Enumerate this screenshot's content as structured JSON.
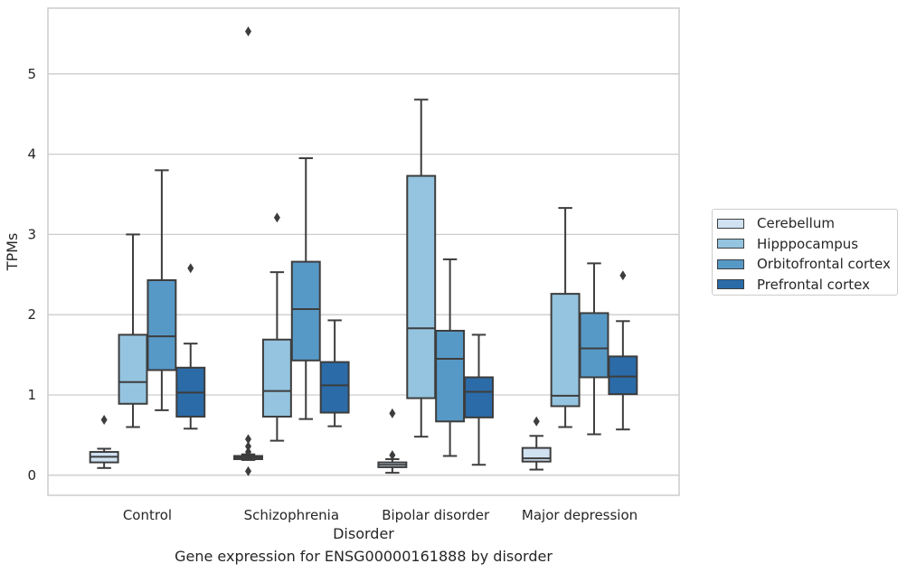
{
  "caption": "Gene expression for ENSG00000161888 by disorder",
  "chart_data": {
    "type": "box",
    "title": "",
    "xlabel": "Disorder",
    "ylabel": "TPMs",
    "ylim": [
      -0.25,
      5.82
    ],
    "yticks": [
      0,
      1,
      2,
      3,
      4,
      5
    ],
    "grid": true,
    "legend_position": "right",
    "categories": [
      "Control",
      "Schizophrenia",
      "Bipolar disorder",
      "Major depression"
    ],
    "series": [
      {
        "name": "Cerebellum",
        "color": "#d0e1f2",
        "boxes": [
          {
            "whislo": 0.09,
            "q1": 0.16,
            "med": 0.23,
            "q3": 0.29,
            "whishi": 0.33,
            "fliers": [
              0.69
            ]
          },
          {
            "whislo": 0.19,
            "q1": 0.2,
            "med": 0.22,
            "q3": 0.24,
            "whishi": 0.26,
            "fliers": [
              0.05,
              0.29,
              0.36,
              0.45,
              5.53
            ]
          },
          {
            "whislo": 0.03,
            "q1": 0.1,
            "med": 0.13,
            "q3": 0.16,
            "whishi": 0.2,
            "fliers": [
              0.25,
              0.77
            ]
          },
          {
            "whislo": 0.07,
            "q1": 0.17,
            "med": 0.21,
            "q3": 0.34,
            "whishi": 0.49,
            "fliers": [
              0.67
            ]
          }
        ]
      },
      {
        "name": "Hipppocampus",
        "color": "#94c4df",
        "boxes": [
          {
            "whislo": 0.6,
            "q1": 0.89,
            "med": 1.16,
            "q3": 1.75,
            "whishi": 3.0,
            "fliers": []
          },
          {
            "whislo": 0.43,
            "q1": 0.73,
            "med": 1.05,
            "q3": 1.69,
            "whishi": 2.53,
            "fliers": [
              3.21
            ]
          },
          {
            "whislo": 0.48,
            "q1": 0.96,
            "med": 1.83,
            "q3": 3.73,
            "whishi": 4.68,
            "fliers": []
          },
          {
            "whislo": 0.6,
            "q1": 0.86,
            "med": 0.99,
            "q3": 2.26,
            "whishi": 3.33,
            "fliers": []
          }
        ]
      },
      {
        "name": "Orbitofrontal cortex",
        "color": "#5799c6",
        "boxes": [
          {
            "whislo": 0.81,
            "q1": 1.31,
            "med": 1.73,
            "q3": 2.43,
            "whishi": 3.8,
            "fliers": []
          },
          {
            "whislo": 0.7,
            "q1": 1.43,
            "med": 2.07,
            "q3": 2.66,
            "whishi": 3.95,
            "fliers": []
          },
          {
            "whislo": 0.24,
            "q1": 0.67,
            "med": 1.45,
            "q3": 1.8,
            "whishi": 2.69,
            "fliers": []
          },
          {
            "whislo": 0.51,
            "q1": 1.22,
            "med": 1.58,
            "q3": 2.02,
            "whishi": 2.64,
            "fliers": []
          }
        ]
      },
      {
        "name": "Prefrontal cortex",
        "color": "#2b6ba8",
        "boxes": [
          {
            "whislo": 0.58,
            "q1": 0.73,
            "med": 1.03,
            "q3": 1.34,
            "whishi": 1.64,
            "fliers": [
              2.58
            ]
          },
          {
            "whislo": 0.61,
            "q1": 0.78,
            "med": 1.12,
            "q3": 1.41,
            "whishi": 1.93,
            "fliers": []
          },
          {
            "whislo": 0.13,
            "q1": 0.72,
            "med": 1.04,
            "q3": 1.22,
            "whishi": 1.75,
            "fliers": []
          },
          {
            "whislo": 0.57,
            "q1": 1.01,
            "med": 1.23,
            "q3": 1.48,
            "whishi": 1.92,
            "fliers": [
              2.49
            ]
          }
        ]
      }
    ]
  }
}
